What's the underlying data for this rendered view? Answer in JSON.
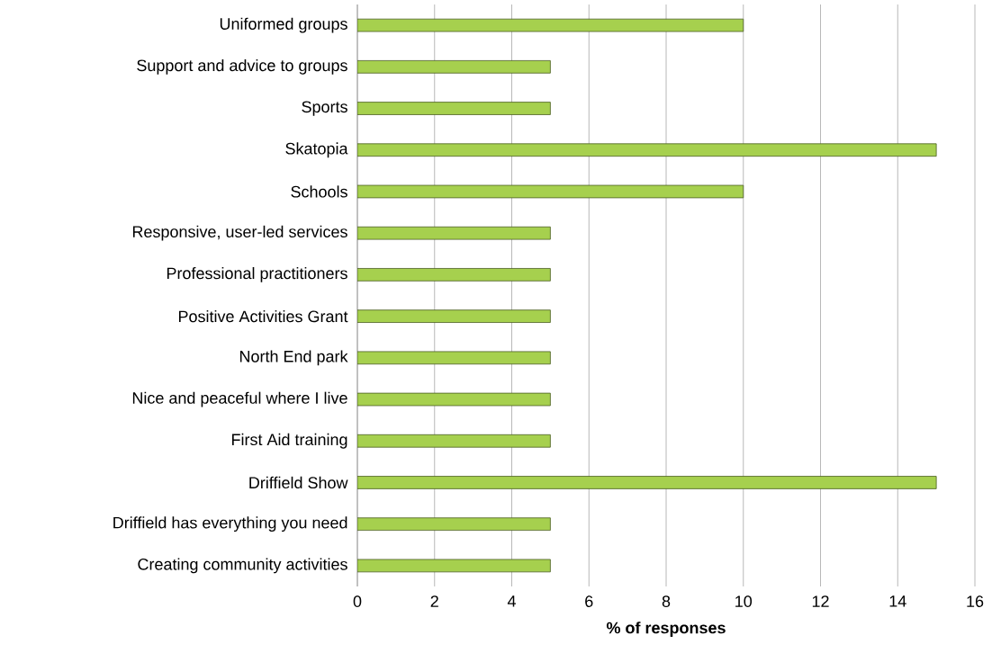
{
  "chart_data": {
    "type": "bar",
    "orientation": "horizontal",
    "xlabel": "% of responses",
    "categories": [
      "Uniformed groups",
      "Support and advice to groups",
      "Sports",
      "Skatopia",
      "Schools",
      "Responsive, user-led services",
      "Professional practitioners",
      "Positive Activities Grant",
      "North End park",
      "Nice and peaceful where I live",
      "First Aid training",
      "Driffield Show",
      "Driffield has everything you need",
      "Creating community activities"
    ],
    "values": [
      10,
      5,
      5,
      15,
      10,
      5,
      5,
      5,
      5,
      5,
      5,
      15,
      5,
      5
    ],
    "color": "#a6d04e",
    "xlim": [
      0,
      16
    ],
    "xticks": [
      0,
      2,
      4,
      6,
      8,
      10,
      12,
      14,
      16
    ],
    "grid": "x"
  }
}
